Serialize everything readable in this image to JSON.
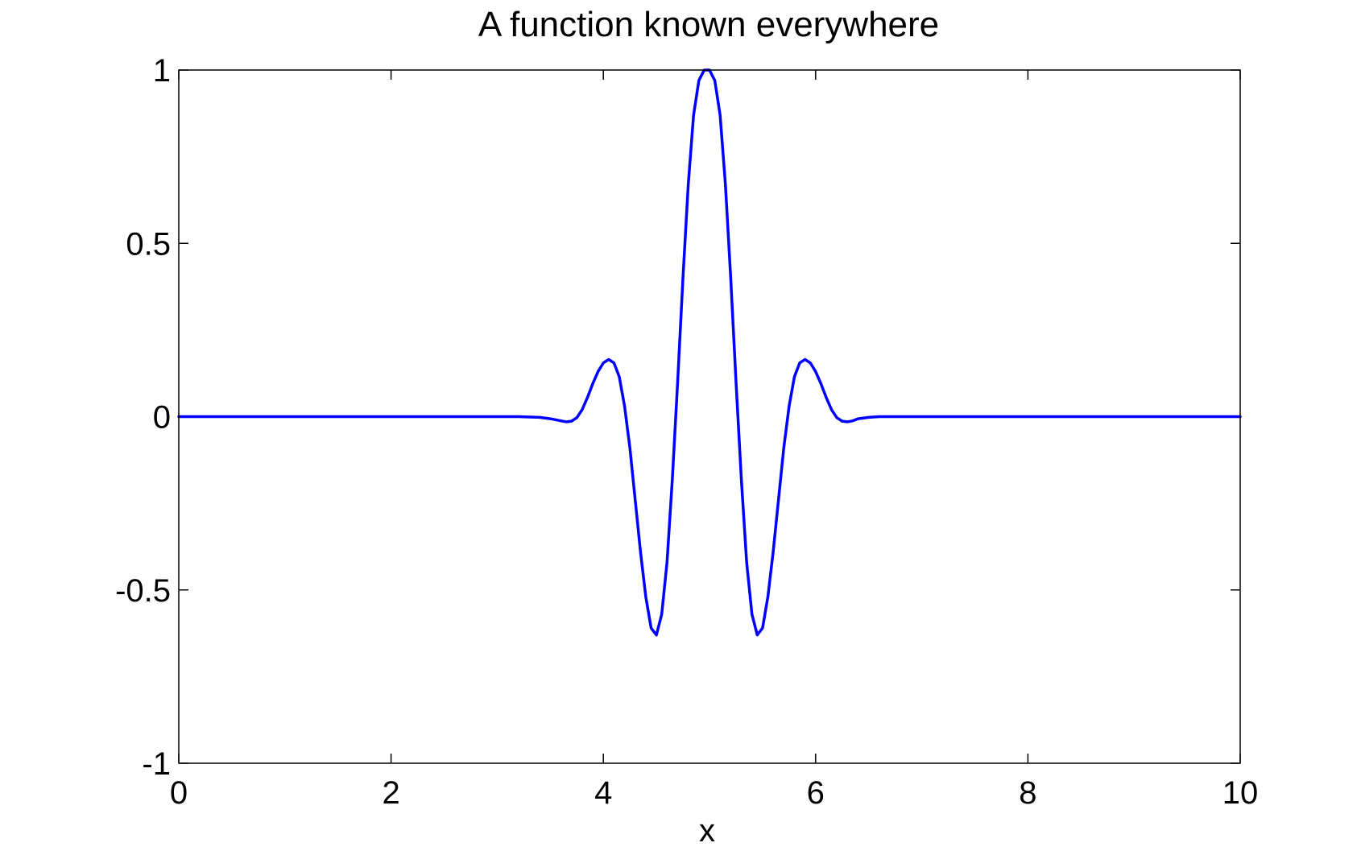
{
  "chart_data": {
    "type": "line",
    "title": "A function known everywhere",
    "xlabel": "x",
    "ylabel": "",
    "xlim": [
      0,
      10
    ],
    "ylim": [
      -1,
      1
    ],
    "x_ticks": [
      0,
      2,
      4,
      6,
      8,
      10
    ],
    "x_tick_labels": [
      "0",
      "2",
      "4",
      "6",
      "8",
      "10"
    ],
    "y_ticks": [
      -1,
      -0.5,
      0,
      0.5,
      1
    ],
    "y_tick_labels": [
      "-1",
      "-0.5",
      "0",
      "0.5",
      "1"
    ],
    "grid": false,
    "legend": "none",
    "series": [
      {
        "color": "#0000ff",
        "x": [
          0,
          0.5,
          1,
          1.5,
          2,
          2.5,
          3,
          3.2,
          3.4,
          3.5,
          3.6,
          3.65,
          3.7,
          3.75,
          3.8,
          3.85,
          3.9,
          3.95,
          4.0,
          4.05,
          4.1,
          4.15,
          4.2,
          4.25,
          4.3,
          4.35,
          4.4,
          4.45,
          4.5,
          4.55,
          4.6,
          4.65,
          4.7,
          4.75,
          4.8,
          4.85,
          4.9,
          4.95,
          5.0,
          5.05,
          5.1,
          5.15,
          5.2,
          5.25,
          5.3,
          5.35,
          5.4,
          5.45,
          5.5,
          5.55,
          5.6,
          5.65,
          5.7,
          5.75,
          5.8,
          5.85,
          5.9,
          5.95,
          6.0,
          6.05,
          6.1,
          6.15,
          6.2,
          6.25,
          6.3,
          6.35,
          6.4,
          6.5,
          6.6,
          6.8,
          7,
          7.5,
          8,
          8.5,
          9,
          9.5,
          10
        ],
        "y": [
          0,
          0,
          0,
          0,
          0,
          0,
          0,
          0.0,
          -0.002,
          -0.006,
          -0.012,
          -0.015,
          -0.013,
          -0.003,
          0.02,
          0.055,
          0.095,
          0.13,
          0.155,
          0.165,
          0.155,
          0.115,
          0.03,
          -0.09,
          -0.24,
          -0.39,
          -0.52,
          -0.61,
          -0.63,
          -0.57,
          -0.42,
          -0.18,
          0.1,
          0.4,
          0.67,
          0.87,
          0.97,
          1.0,
          1.0,
          0.97,
          0.87,
          0.67,
          0.4,
          0.1,
          -0.18,
          -0.42,
          -0.57,
          -0.63,
          -0.61,
          -0.52,
          -0.39,
          -0.24,
          -0.09,
          0.03,
          0.115,
          0.155,
          0.165,
          0.155,
          0.13,
          0.095,
          0.055,
          0.02,
          -0.003,
          -0.013,
          -0.015,
          -0.012,
          -0.006,
          -0.002,
          0.0,
          0,
          0,
          0,
          0,
          0,
          0,
          0,
          0
        ]
      }
    ]
  }
}
